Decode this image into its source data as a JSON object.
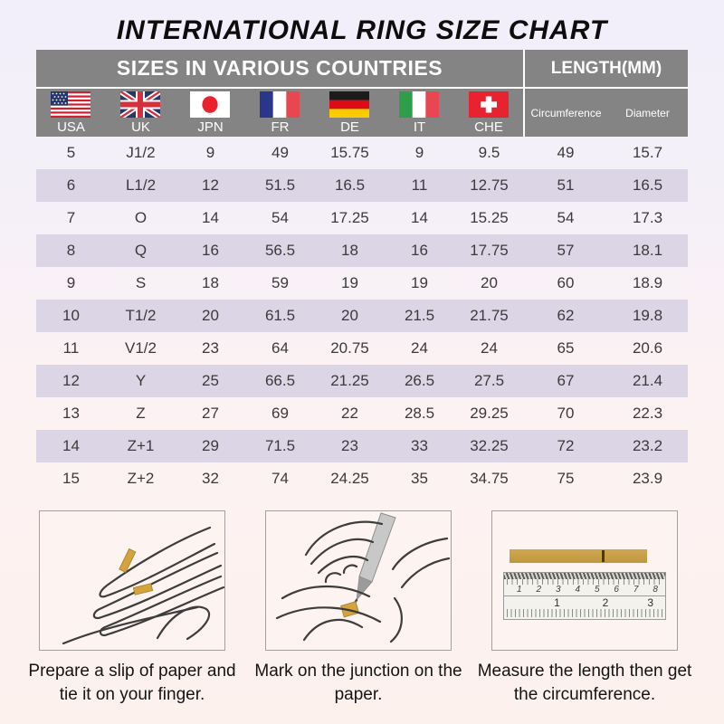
{
  "title": "INTERNATIONAL RING SIZE CHART",
  "chart_data": {
    "type": "table",
    "title": "INTERNATIONAL RING SIZE CHART",
    "sizes_header": "SIZES IN VARIOUS COUNTRIES",
    "length_header": "LENGTH(MM)",
    "columns": [
      "USA",
      "UK",
      "JPN",
      "FR",
      "DE",
      "IT",
      "CHE",
      "Circumference",
      "Diameter"
    ],
    "rows": [
      [
        "5",
        "J1/2",
        "9",
        "49",
        "15.75",
        "9",
        "9.5",
        "49",
        "15.7"
      ],
      [
        "6",
        "L1/2",
        "12",
        "51.5",
        "16.5",
        "11",
        "12.75",
        "51",
        "16.5"
      ],
      [
        "7",
        "O",
        "14",
        "54",
        "17.25",
        "14",
        "15.25",
        "54",
        "17.3"
      ],
      [
        "8",
        "Q",
        "16",
        "56.5",
        "18",
        "16",
        "17.75",
        "57",
        "18.1"
      ],
      [
        "9",
        "S",
        "18",
        "59",
        "19",
        "19",
        "20",
        "60",
        "18.9"
      ],
      [
        "10",
        "T1/2",
        "20",
        "61.5",
        "20",
        "21.5",
        "21.75",
        "62",
        "19.8"
      ],
      [
        "11",
        "V1/2",
        "23",
        "64",
        "20.75",
        "24",
        "24",
        "65",
        "20.6"
      ],
      [
        "12",
        "Y",
        "25",
        "66.5",
        "21.25",
        "26.5",
        "27.5",
        "67",
        "21.4"
      ],
      [
        "13",
        "Z",
        "27",
        "69",
        "22",
        "28.5",
        "29.25",
        "70",
        "22.3"
      ],
      [
        "14",
        "Z+1",
        "29",
        "71.5",
        "23",
        "33",
        "32.25",
        "72",
        "23.2"
      ],
      [
        "15",
        "Z+2",
        "32",
        "74",
        "24.25",
        "35",
        "34.75",
        "75",
        "23.9"
      ]
    ]
  },
  "flags": [
    {
      "icon": "usa-flag-icon",
      "label": "USA"
    },
    {
      "icon": "uk-flag-icon",
      "label": "UK"
    },
    {
      "icon": "japan-flag-icon",
      "label": "JPN"
    },
    {
      "icon": "france-flag-icon",
      "label": "FR"
    },
    {
      "icon": "germany-flag-icon",
      "label": "DE"
    },
    {
      "icon": "italy-flag-icon",
      "label": "IT"
    },
    {
      "icon": "switzerland-flag-icon",
      "label": "CHE"
    }
  ],
  "instructions": [
    {
      "illustration": "hand-with-paper-strip",
      "caption": "Prepare a slip of paper and tie it on your finger."
    },
    {
      "illustration": "pen-marking-paper",
      "caption": "Mark on the junction on the paper."
    },
    {
      "illustration": "ruler-measuring-strip",
      "caption": "Measure the length then get the circumference."
    }
  ],
  "ruler": {
    "cm": [
      "1",
      "2",
      "3",
      "4",
      "5",
      "6",
      "7",
      "8"
    ],
    "inch": [
      "1",
      "2",
      "3"
    ]
  },
  "colors": {
    "header_gray": "#848484",
    "row_shade": "#dcd5e6",
    "paper_gold": "#c9a24b",
    "background_top": "#f2effa",
    "background_bottom": "#fdf1ee"
  }
}
